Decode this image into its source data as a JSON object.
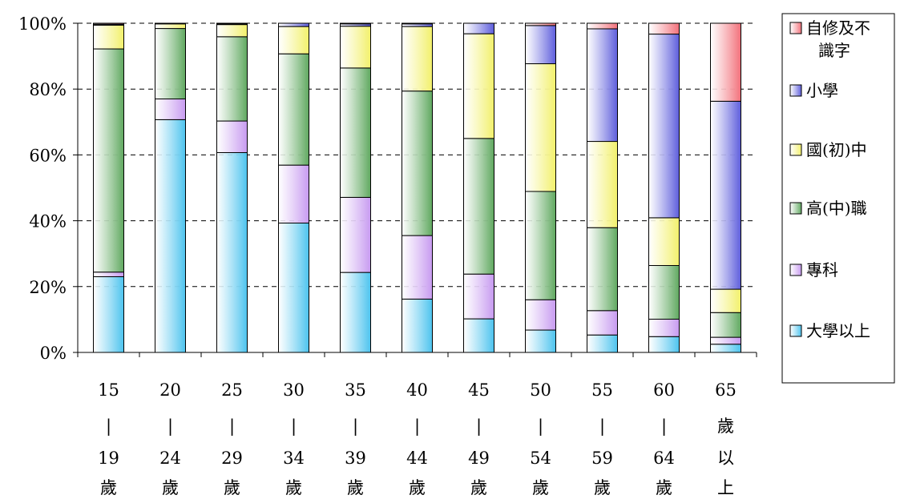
{
  "chart_data": {
    "type": "bar",
    "stacked": true,
    "percent": true,
    "title": "",
    "xlabel": "",
    "ylabel": "",
    "ylim": [
      0,
      100
    ],
    "y_ticks": [
      "0%",
      "20%",
      "40%",
      "60%",
      "80%",
      "100%"
    ],
    "grid": "horizontal-dashed",
    "legend_position": "right",
    "categories": [
      [
        "15",
        "|",
        "19",
        "歲"
      ],
      [
        "20",
        "|",
        "24",
        "歲"
      ],
      [
        "25",
        "|",
        "29",
        "歲"
      ],
      [
        "30",
        "|",
        "34",
        "歲"
      ],
      [
        "35",
        "|",
        "39",
        "歲"
      ],
      [
        "40",
        "|",
        "44",
        "歲"
      ],
      [
        "45",
        "|",
        "49",
        "歲"
      ],
      [
        "50",
        "|",
        "54",
        "歲"
      ],
      [
        "55",
        "|",
        "59",
        "歲"
      ],
      [
        "60",
        "|",
        "64",
        "歲"
      ],
      [
        "65",
        "歲",
        "以",
        "上"
      ]
    ],
    "series": [
      {
        "name": "大學以上",
        "color": "#4cc3ee",
        "values": [
          23.0,
          70.7,
          60.7,
          39.3,
          24.3,
          16.2,
          10.2,
          6.8,
          5.3,
          4.8,
          2.5
        ]
      },
      {
        "name": "專科",
        "color": "#c79af0",
        "values": [
          1.4,
          6.3,
          9.6,
          17.6,
          22.8,
          19.3,
          13.6,
          9.2,
          7.4,
          5.3,
          2.1
        ]
      },
      {
        "name": "高(中)職",
        "color": "#5fa85f",
        "values": [
          67.8,
          21.4,
          25.6,
          33.8,
          39.3,
          43.9,
          41.2,
          32.9,
          25.2,
          16.3,
          7.5
        ]
      },
      {
        "name": "國(初)中",
        "color": "#f2f06a",
        "values": [
          7.2,
          1.4,
          3.7,
          8.3,
          12.7,
          19.6,
          31.8,
          38.8,
          26.2,
          14.5,
          7.1
        ]
      },
      {
        "name": "小學",
        "color": "#5d5ddc",
        "values": [
          0.3,
          0.0,
          0.2,
          1.0,
          0.7,
          0.8,
          3.2,
          11.6,
          34.2,
          55.8,
          57.1
        ]
      },
      {
        "name": "自修及不識字",
        "color": "#f2707a",
        "values": [
          0.3,
          0.2,
          0.2,
          0.0,
          0.2,
          0.2,
          0.0,
          0.7,
          1.7,
          3.3,
          23.7
        ]
      }
    ]
  },
  "legend": {
    "items": [
      {
        "label_lines": [
          "自修及不",
          "識字"
        ],
        "color": "#f2707a"
      },
      {
        "label_lines": [
          "小學"
        ],
        "color": "#5d5ddc"
      },
      {
        "label_lines": [
          "國(初)中"
        ],
        "color": "#f2f06a"
      },
      {
        "label_lines": [
          "高(中)職"
        ],
        "color": "#5fa85f"
      },
      {
        "label_lines": [
          "專科"
        ],
        "color": "#c79af0"
      },
      {
        "label_lines": [
          "大學以上"
        ],
        "color": "#4cc3ee"
      }
    ]
  }
}
